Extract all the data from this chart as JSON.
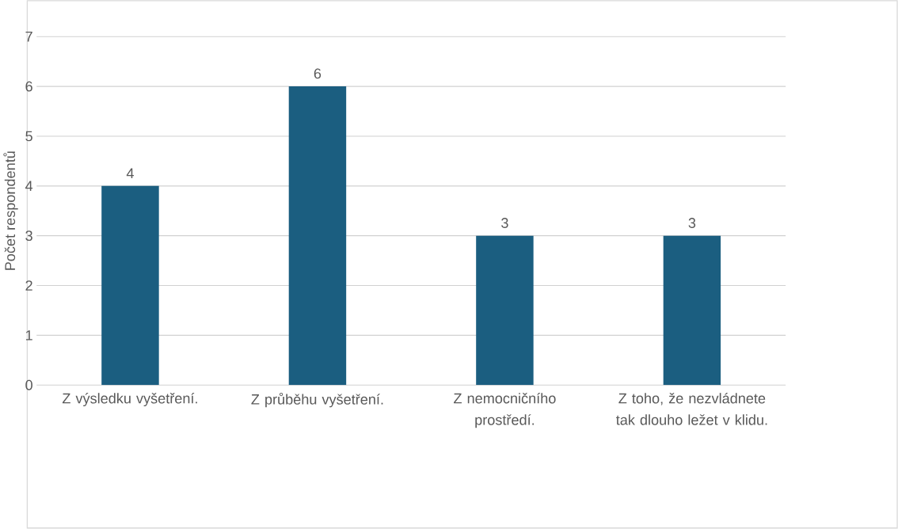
{
  "chart_data": {
    "type": "bar",
    "ylabel": "Počet respondentů",
    "categories": [
      "Z výsledku vyšetření.",
      "Z průběhu vyšetření.",
      "Z nemocničního prostředí.",
      "Z toho, že nezvládnete tak dlouho ležet v klidu."
    ],
    "values": [
      4,
      6,
      3,
      3
    ],
    "color": "#1b5e80",
    "ylim": [
      0,
      7
    ],
    "yticks": [
      0,
      1,
      2,
      3,
      4,
      5,
      6,
      7
    ],
    "grid": "y",
    "data_labels": true
  }
}
